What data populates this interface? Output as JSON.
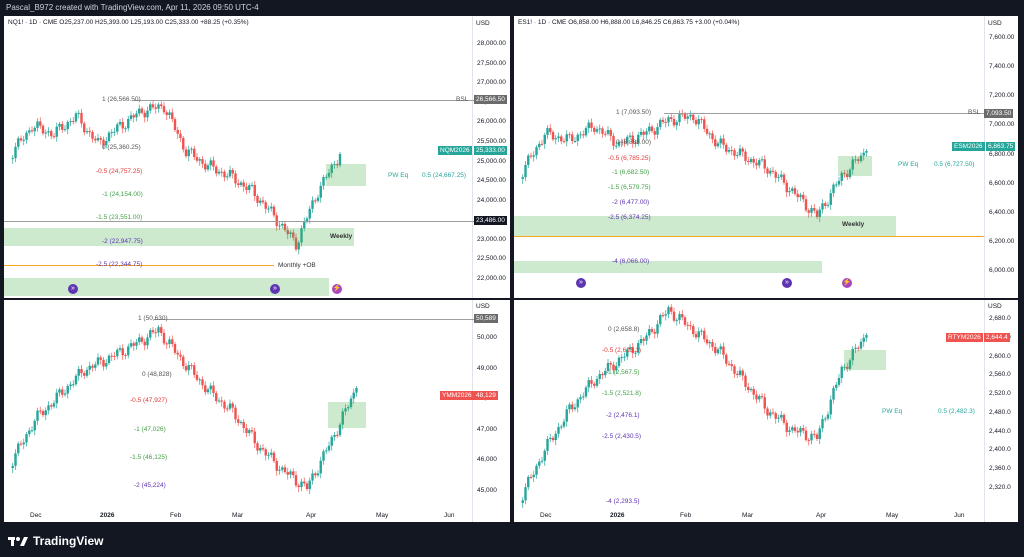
{
  "header": {
    "title": "Pascal_B972 created with TradingView.com, Apr 11, 2026 09:50 UTC-4"
  },
  "footer": {
    "brand": "TradingView"
  },
  "colors": {
    "up": "#26a69a",
    "down": "#ef5350",
    "zone": "#4caf50",
    "orange": "#f5a623",
    "purple": "#7e57c2"
  },
  "panels": {
    "nq": {
      "legend": "NQ1! · 1D · CME  O25,237.00  H25,393.00  L25,193.00  C25,333.00  +88.25 (+0.35%)",
      "currency": "USD",
      "axis": [
        "28,000.00",
        "27,500.00",
        "27,000.00",
        "26,500.00",
        "26,000.00",
        "25,500.00",
        "25,000.00",
        "24,500.00",
        "24,000.00",
        "23,500.00",
        "23,000.00",
        "22,500.00",
        "22,000.00"
      ],
      "price_tag": {
        "symbol": "NQM2026",
        "value": "25,333.00"
      },
      "bsl_tag": "26,566.50",
      "level_tag": "23,486.00",
      "bsl_label": "BSL",
      "pw_eq": "PW Eq",
      "pw_half": "0.5 (24,667.25)",
      "weekly": "Weekly",
      "monthly_ob": "Monthly +OB",
      "fibs": [
        {
          "text": "1 (26,566.50)",
          "color": "#555555"
        },
        {
          "text": "0 (25,360.25)",
          "color": "#555555"
        },
        {
          "text": "-0.5 (24,757.25)",
          "color": "#e53935"
        },
        {
          "text": "-1 (24,154.00)",
          "color": "#43a047"
        },
        {
          "text": "-1.5 (23,551.00)",
          "color": "#43a047"
        },
        {
          "text": "-2 (22,947.75)",
          "color": "#5e35b1"
        },
        {
          "text": "-2.5 (22,344.75)",
          "color": "#5e35b1"
        }
      ]
    },
    "es": {
      "legend": "ES1! · 1D · CME  O6,858.00  H6,888.00  L6,846.25  C6,863.75  +3.00 (+0.04%)",
      "currency": "USD",
      "axis": [
        "7,600.00",
        "7,400.00",
        "7,200.00",
        "7,000.00",
        "6,800.00",
        "6,600.00",
        "6,400.00",
        "6,200.00",
        "6,000.00"
      ],
      "price_tag": {
        "symbol": "ESM2026",
        "value": "6,863.75"
      },
      "bsl_tag": "7,093.50",
      "bsl_label": "BSL",
      "pw_eq": "PW Eq",
      "pw_half": "0.5 (6,727.50)",
      "weekly": "Weekly",
      "fibs": [
        {
          "text": "1 (7,093.50)",
          "color": "#555555"
        },
        {
          "text": "0 (6,888.00)",
          "color": "#555555"
        },
        {
          "text": "-0.5 (6,785.25)",
          "color": "#e53935"
        },
        {
          "text": "-1 (6,682.50)",
          "color": "#43a047"
        },
        {
          "text": "-1.5 (6,579.75)",
          "color": "#43a047"
        },
        {
          "text": "-2 (6,477.00)",
          "color": "#5e35b1"
        },
        {
          "text": "-2.5 (6,374.25)",
          "color": "#5e35b1"
        },
        {
          "text": "-4 (6,066.00)",
          "color": "#5e35b1"
        }
      ]
    },
    "ym": {
      "currency": "USD",
      "axis": [
        "50,000",
        "49,000",
        "48,000",
        "47,000",
        "46,000",
        "45,000"
      ],
      "price_tag": {
        "symbol": "YMM2026",
        "value": "48,129"
      },
      "top_tag": "50,589",
      "fibs": [
        {
          "text": "1 (50,630)",
          "color": "#555555"
        },
        {
          "text": "0 (48,828)",
          "color": "#555555"
        },
        {
          "text": "-0.5 (47,927)",
          "color": "#e53935"
        },
        {
          "text": "-1 (47,026)",
          "color": "#43a047"
        },
        {
          "text": "-1.5 (46,125)",
          "color": "#43a047"
        },
        {
          "text": "-2 (45,224)",
          "color": "#5e35b1"
        }
      ],
      "dates": [
        "Dec",
        "2026",
        "Feb",
        "Mar",
        "Apr",
        "May",
        "Jun"
      ]
    },
    "rty": {
      "currency": "USD",
      "axis": [
        "2,680.0",
        "2,640.0",
        "2,600.0",
        "2,560.0",
        "2,520.0",
        "2,480.0",
        "2,440.0",
        "2,400.0",
        "2,360.0",
        "2,320.0"
      ],
      "price_tag": {
        "symbol": "RTYM2026",
        "value": "2,644.4"
      },
      "pw_eq": "PW Eq",
      "pw_half": "0.5 (2,482.3)",
      "fibs": [
        {
          "text": "0 (2,658.8)",
          "color": "#555555"
        },
        {
          "text": "-0.5 (2,613.1)",
          "color": "#e53935"
        },
        {
          "text": "-1 (2,567.5)",
          "color": "#43a047"
        },
        {
          "text": "-1.5 (2,521.8)",
          "color": "#43a047"
        },
        {
          "text": "-2 (2,476.1)",
          "color": "#5e35b1"
        },
        {
          "text": "-2.5 (2,430.5)",
          "color": "#5e35b1"
        },
        {
          "text": "-4 (2,293.5)",
          "color": "#5e35b1"
        }
      ],
      "dates": [
        "Dec",
        "2026",
        "Feb",
        "Mar",
        "Apr",
        "May",
        "Jun"
      ]
    }
  }
}
